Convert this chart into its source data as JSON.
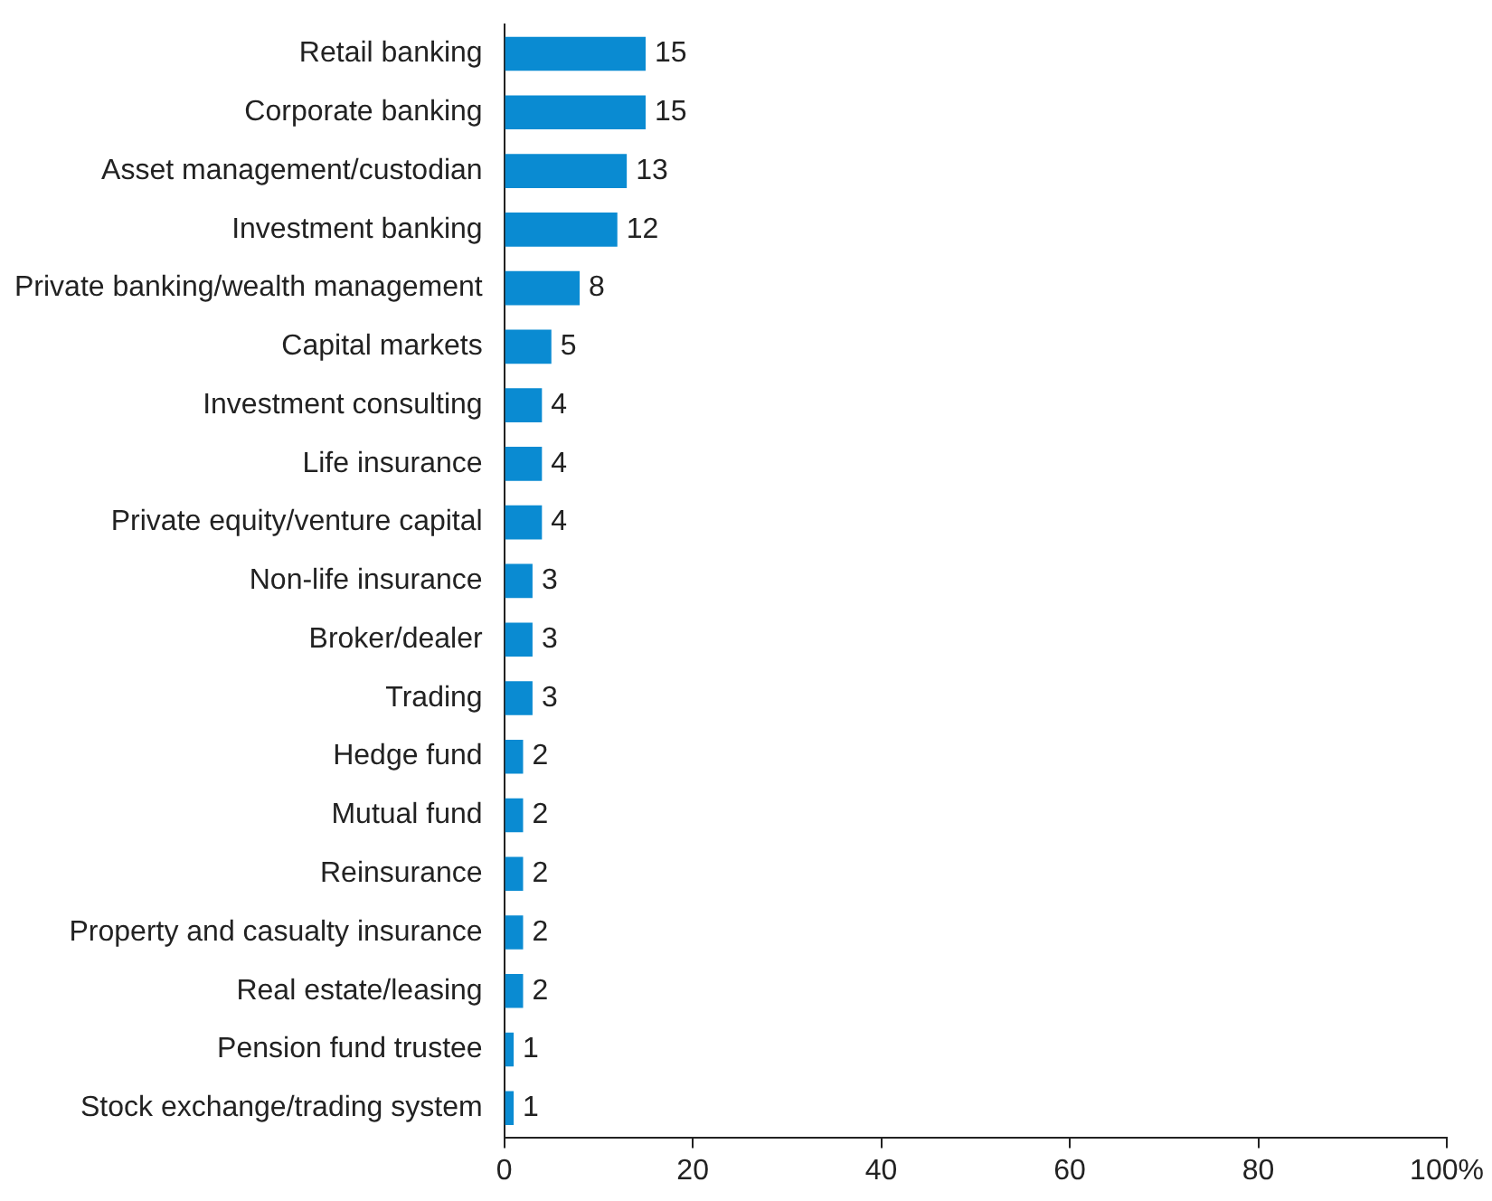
{
  "chart_data": {
    "type": "bar",
    "orientation": "horizontal",
    "categories": [
      "Retail banking",
      "Corporate banking",
      "Asset management/custodian",
      "Investment banking",
      "Private banking/wealth management",
      "Capital markets",
      "Investment consulting",
      "Life insurance",
      "Private equity/venture capital",
      "Non-life insurance",
      "Broker/dealer",
      "Trading",
      "Hedge fund",
      "Mutual fund",
      "Reinsurance",
      "Property and casualty insurance",
      "Real estate/leasing",
      "Pension fund trustee",
      "Stock exchange/trading system"
    ],
    "values": [
      15,
      15,
      13,
      12,
      8,
      5,
      4,
      4,
      4,
      3,
      3,
      3,
      2,
      2,
      2,
      2,
      2,
      1,
      1
    ],
    "color": "#0a8bd2",
    "xlim": [
      0,
      100
    ],
    "xticks": [
      0,
      20,
      40,
      60,
      80,
      {
        "value": 100,
        "label": "100%"
      }
    ],
    "grid": false,
    "legend": false,
    "data_labels": true
  }
}
